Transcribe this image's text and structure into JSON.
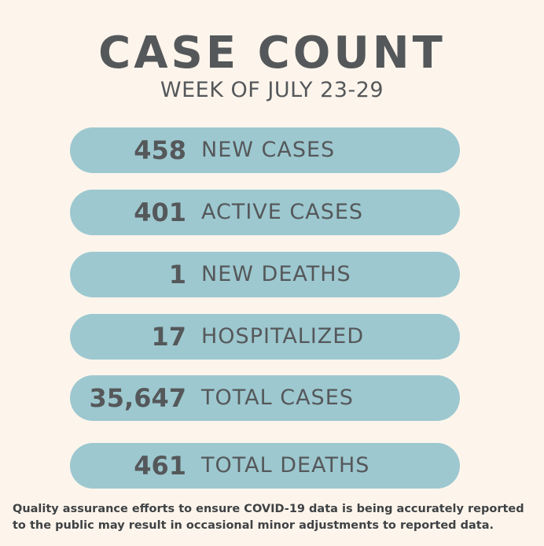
{
  "header": {
    "title": "CASE COUNT",
    "subtitle": "WEEK OF JULY 23-29"
  },
  "stats": [
    {
      "value": "458",
      "label": "NEW CASES"
    },
    {
      "value": "401",
      "label": "ACTIVE CASES"
    },
    {
      "value": "1",
      "label": "NEW DEATHS"
    },
    {
      "value": "17",
      "label": "HOSPITALIZED"
    },
    {
      "value": "35,647",
      "label": "TOTAL CASES"
    },
    {
      "value": "461",
      "label": "TOTAL DEATHS"
    }
  ],
  "footer": {
    "disclaimer": "Quality assurance efforts to ensure COVID-19 data is being accurately reported to the public may result in occasional minor adjustments to reported data."
  },
  "colors": {
    "background": "#fdf5ec",
    "pill": "#9dc8d0",
    "text": "#55585a"
  }
}
